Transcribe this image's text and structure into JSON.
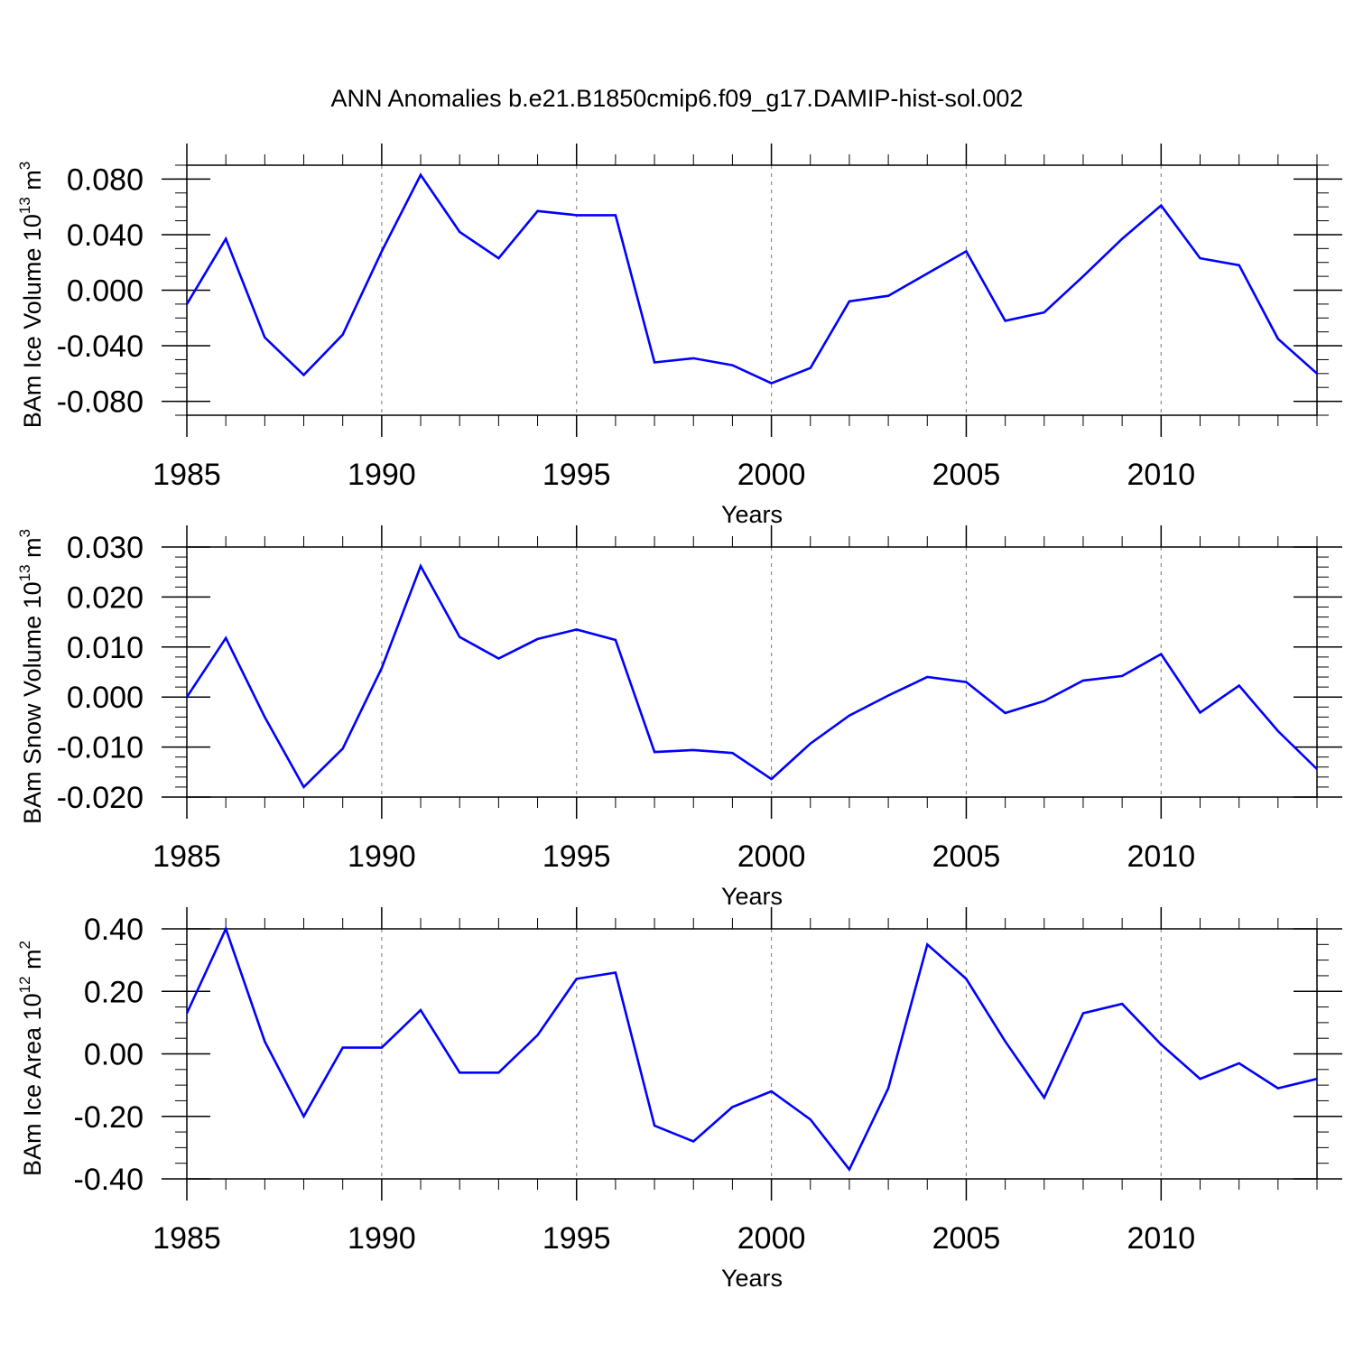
{
  "figure_title": "ANN Anomalies b.e21.B1850cmip6.f09_g17.DAMIP-hist-sol.002",
  "chart_data": [
    {
      "type": "line",
      "ylabel_main": "BAm Ice Volume 10",
      "ylabel_exp": "13",
      "ylabel_unit": " m",
      "ylabel_unit_exp": "3",
      "xlabel": "Years",
      "x": [
        1985,
        1986,
        1987,
        1988,
        1989,
        1990,
        1991,
        1992,
        1993,
        1994,
        1995,
        1996,
        1997,
        1998,
        1999,
        2000,
        2001,
        2002,
        2003,
        2004,
        2005,
        2006,
        2007,
        2008,
        2009,
        2010,
        2011,
        2012,
        2013,
        2014
      ],
      "series": [
        {
          "values": [
            -0.01,
            0.037,
            -0.034,
            -0.061,
            -0.032,
            0.028,
            0.083,
            0.042,
            0.023,
            0.057,
            0.054,
            0.054,
            -0.052,
            -0.049,
            -0.054,
            -0.067,
            -0.056,
            -0.008,
            -0.004,
            0.012,
            0.028,
            -0.022,
            -0.016,
            0.01,
            0.037,
            0.061,
            0.023,
            0.018,
            -0.035,
            -0.06
          ],
          "color": "#0000ff"
        }
      ],
      "xlim": [
        1985,
        2014
      ],
      "ylim": [
        -0.09,
        0.09
      ],
      "yticks": [
        -0.08,
        -0.04,
        0.0,
        0.04,
        0.08
      ],
      "ytick_labels": [
        "-0.080",
        "-0.040",
        "0.000",
        "0.040",
        "0.080"
      ],
      "yminor_step": 0.01,
      "xticks": [
        1985,
        1990,
        1995,
        2000,
        2005,
        2010
      ],
      "xtick_labels": [
        "1985",
        "1990",
        "1995",
        "2000",
        "2005",
        "2010"
      ],
      "grid": "vertical dashed at major x ticks"
    },
    {
      "type": "line",
      "ylabel_main": "BAm Snow Volume 10",
      "ylabel_exp": "13",
      "ylabel_unit": " m",
      "ylabel_unit_exp": "3",
      "xlabel": "Years",
      "x": [
        1985,
        1986,
        1987,
        1988,
        1989,
        1990,
        1991,
        1992,
        1993,
        1994,
        1995,
        1996,
        1997,
        1998,
        1999,
        2000,
        2001,
        2002,
        2003,
        2004,
        2005,
        2006,
        2007,
        2008,
        2009,
        2010,
        2011,
        2012,
        2013,
        2014
      ],
      "series": [
        {
          "values": [
            0.0,
            0.0118,
            -0.004,
            -0.018,
            -0.0103,
            0.0058,
            0.0262,
            0.012,
            0.0077,
            0.0116,
            0.0135,
            0.0114,
            -0.011,
            -0.0106,
            -0.0112,
            -0.0164,
            -0.0093,
            -0.0037,
            0.0003,
            0.004,
            0.003,
            -0.0032,
            -0.0008,
            0.0033,
            0.0042,
            0.0086,
            -0.0031,
            0.0023,
            -0.0068,
            -0.0144
          ],
          "color": "#0000ff"
        }
      ],
      "xlim": [
        1985,
        2014
      ],
      "ylim": [
        -0.02,
        0.03
      ],
      "yticks": [
        -0.02,
        -0.01,
        0.0,
        0.01,
        0.02,
        0.03
      ],
      "ytick_labels": [
        "-0.020",
        "-0.010",
        "0.000",
        "0.010",
        "0.020",
        "0.030"
      ],
      "yminor_step": 0.002,
      "xticks": [
        1985,
        1990,
        1995,
        2000,
        2005,
        2010
      ],
      "xtick_labels": [
        "1985",
        "1990",
        "1995",
        "2000",
        "2005",
        "2010"
      ],
      "grid": "vertical dashed at major x ticks"
    },
    {
      "type": "line",
      "ylabel_main": "BAm Ice Area 10",
      "ylabel_exp": "12",
      "ylabel_unit": " m",
      "ylabel_unit_exp": "2",
      "xlabel": "Years",
      "x": [
        1985,
        1986,
        1987,
        1988,
        1989,
        1990,
        1991,
        1992,
        1993,
        1994,
        1995,
        1996,
        1997,
        1998,
        1999,
        2000,
        2001,
        2002,
        2003,
        2004,
        2005,
        2006,
        2007,
        2008,
        2009,
        2010,
        2011,
        2012,
        2013,
        2014
      ],
      "series": [
        {
          "values": [
            0.13,
            0.4,
            0.04,
            -0.2,
            0.02,
            0.02,
            0.14,
            -0.06,
            -0.06,
            0.06,
            0.24,
            0.26,
            -0.23,
            -0.28,
            -0.17,
            -0.12,
            -0.21,
            -0.37,
            -0.11,
            0.35,
            0.24,
            0.04,
            -0.14,
            0.13,
            0.16,
            0.03,
            -0.08,
            -0.03,
            -0.11,
            -0.08
          ],
          "color": "#0000ff"
        }
      ],
      "xlim": [
        1985,
        2014
      ],
      "ylim": [
        -0.4,
        0.4
      ],
      "yticks": [
        -0.4,
        -0.2,
        0.0,
        0.2,
        0.4
      ],
      "ytick_labels": [
        "-0.40",
        "-0.20",
        "0.00",
        "0.20",
        "0.40"
      ],
      "yminor_step": 0.05,
      "xticks": [
        1985,
        1990,
        1995,
        2000,
        2005,
        2010
      ],
      "xtick_labels": [
        "1985",
        "1990",
        "1995",
        "2000",
        "2005",
        "2010"
      ],
      "grid": "vertical dashed at major x ticks"
    }
  ]
}
